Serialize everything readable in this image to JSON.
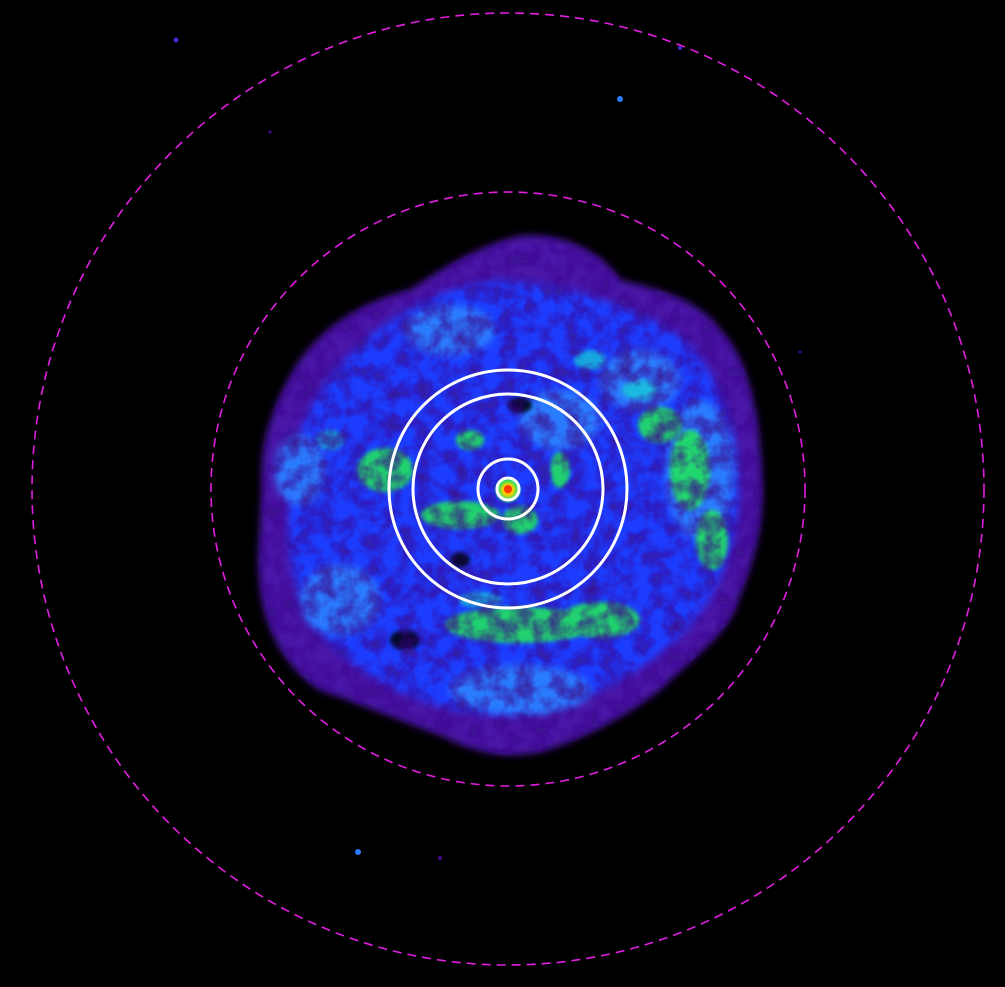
{
  "image": {
    "background_color": "#000000",
    "colormap": [
      "#000000",
      "#3a0b8c",
      "#6a1bb8",
      "#1e3cff",
      "#2a7bff",
      "#18d2d2",
      "#22e060",
      "#ffd000",
      "#ff3a00"
    ],
    "overlay_colors": {
      "dashed_region": "#e21ee2",
      "solid_region": "#ffffff"
    }
  }
}
